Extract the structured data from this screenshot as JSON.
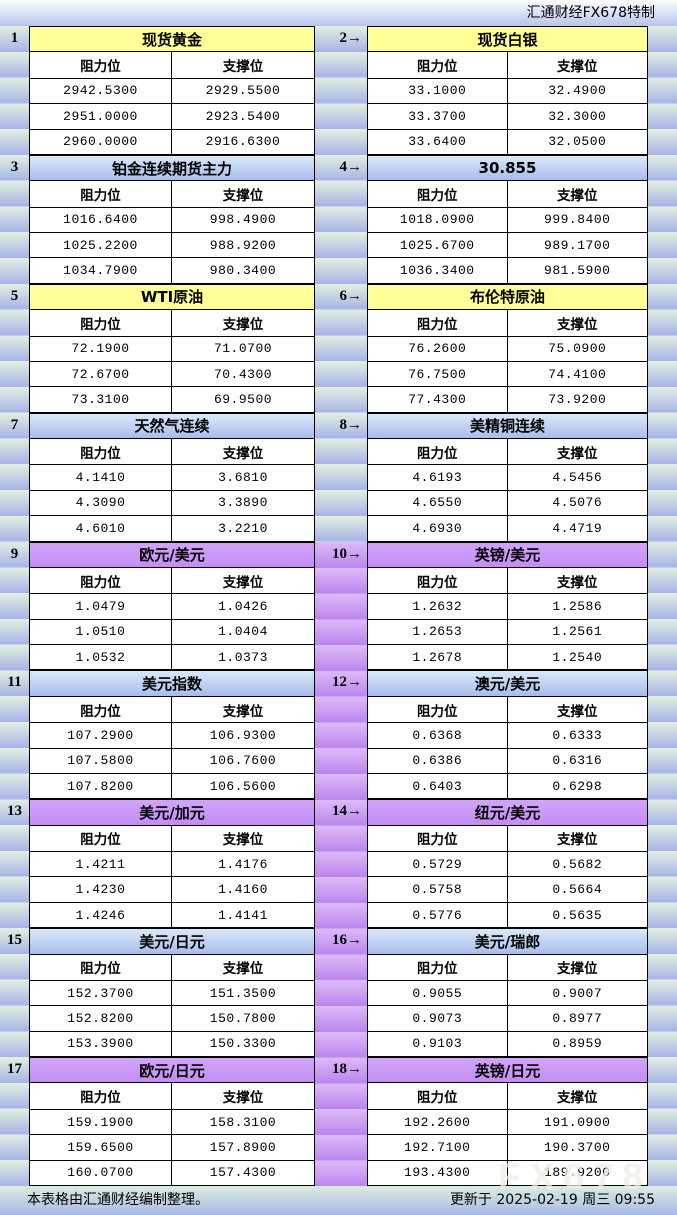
{
  "header": {
    "brand": "汇通财经FX678特制"
  },
  "column_headers": {
    "resistance": "阻力位",
    "support": "支撑位"
  },
  "colors": {
    "yellow_title": "#FFFF99",
    "blue_title_top": "#D9E9FA",
    "blue_title_bottom": "#A8BCEA",
    "purple_title": "#CC99FF",
    "band_light": "#E3EFE0",
    "band_dark": "#A5B3E8",
    "purple_band_light": "#DDBBF7",
    "purple_band_dark": "#BB84EE"
  },
  "panels": [
    {
      "index_label": "1",
      "title": "现货黄金",
      "color": "yellow",
      "resistance": [
        "2942.5300",
        "2951.0000",
        "2960.0000"
      ],
      "support": [
        "2929.5500",
        "2923.5400",
        "2916.6300"
      ]
    },
    {
      "index_label": "2→",
      "title": "现货白银",
      "color": "yellow",
      "resistance": [
        "33.1000",
        "33.3700",
        "33.6400"
      ],
      "support": [
        "32.4900",
        "32.3000",
        "32.0500"
      ]
    },
    {
      "index_label": "3",
      "title": "铂金连续期货主力",
      "color": "blue",
      "resistance": [
        "1016.6400",
        "1025.2200",
        "1034.7900"
      ],
      "support": [
        "998.4900",
        "988.9200",
        "980.3400"
      ]
    },
    {
      "index_label": "4→",
      "title": "30.855",
      "color": "blue",
      "resistance": [
        "1018.0900",
        "1025.6700",
        "1036.3400"
      ],
      "support": [
        "999.8400",
        "989.1700",
        "981.5900"
      ]
    },
    {
      "index_label": "5",
      "title": "WTI原油",
      "color": "yellow",
      "resistance": [
        "72.1900",
        "72.6700",
        "73.3100"
      ],
      "support": [
        "71.0700",
        "70.4300",
        "69.9500"
      ]
    },
    {
      "index_label": "6→",
      "title": "布伦特原油",
      "color": "yellow",
      "resistance": [
        "76.2600",
        "76.7500",
        "77.4300"
      ],
      "support": [
        "75.0900",
        "74.4100",
        "73.9200"
      ]
    },
    {
      "index_label": "7",
      "title": "天然气连续",
      "color": "blue",
      "resistance": [
        "4.1410",
        "4.3090",
        "4.6010"
      ],
      "support": [
        "3.6810",
        "3.3890",
        "3.2210"
      ]
    },
    {
      "index_label": "8→",
      "title": "美精铜连续",
      "color": "blue",
      "resistance": [
        "4.6193",
        "4.6550",
        "4.6930"
      ],
      "support": [
        "4.5456",
        "4.5076",
        "4.4719"
      ]
    },
    {
      "index_label": "9",
      "title": "欧元/美元",
      "color": "purple",
      "resistance": [
        "1.0479",
        "1.0510",
        "1.0532"
      ],
      "support": [
        "1.0426",
        "1.0404",
        "1.0373"
      ]
    },
    {
      "index_label": "10→",
      "title": "英镑/美元",
      "color": "purple",
      "resistance": [
        "1.2632",
        "1.2653",
        "1.2678"
      ],
      "support": [
        "1.2586",
        "1.2561",
        "1.2540"
      ]
    },
    {
      "index_label": "11",
      "title": "美元指数",
      "color": "blue",
      "resistance": [
        "107.2900",
        "107.5800",
        "107.8200"
      ],
      "support": [
        "106.9300",
        "106.7600",
        "106.5600"
      ]
    },
    {
      "index_label": "12→",
      "title": "澳元/美元",
      "color": "blue",
      "resistance": [
        "0.6368",
        "0.6386",
        "0.6403"
      ],
      "support": [
        "0.6333",
        "0.6316",
        "0.6298"
      ]
    },
    {
      "index_label": "13",
      "title": "美元/加元",
      "color": "purple",
      "resistance": [
        "1.4211",
        "1.4230",
        "1.4246"
      ],
      "support": [
        "1.4176",
        "1.4160",
        "1.4141"
      ]
    },
    {
      "index_label": "14→",
      "title": "纽元/美元",
      "color": "purple",
      "resistance": [
        "0.5729",
        "0.5758",
        "0.5776"
      ],
      "support": [
        "0.5682",
        "0.5664",
        "0.5635"
      ]
    },
    {
      "index_label": "15",
      "title": "美元/日元",
      "color": "blue",
      "resistance": [
        "152.3700",
        "152.8200",
        "153.3900"
      ],
      "support": [
        "151.3500",
        "150.7800",
        "150.3300"
      ]
    },
    {
      "index_label": "16→",
      "title": "美元/瑞郎",
      "color": "blue",
      "resistance": [
        "0.9055",
        "0.9073",
        "0.9103"
      ],
      "support": [
        "0.9007",
        "0.8977",
        "0.8959"
      ]
    },
    {
      "index_label": "17",
      "title": "欧元/日元",
      "color": "purple",
      "resistance": [
        "159.1900",
        "159.6500",
        "160.0700"
      ],
      "support": [
        "158.3100",
        "157.8900",
        "157.4300"
      ]
    },
    {
      "index_label": "18→",
      "title": "英镑/日元",
      "color": "purple",
      "resistance": [
        "192.2600",
        "192.7100",
        "193.4300"
      ],
      "support": [
        "191.0900",
        "190.3700",
        "189.9200"
      ]
    }
  ],
  "footer": {
    "note": "本表格由汇通财经编制整理。",
    "updated": "更新于 2025-02-19 周三 09:55",
    "watermark": "FX678"
  }
}
